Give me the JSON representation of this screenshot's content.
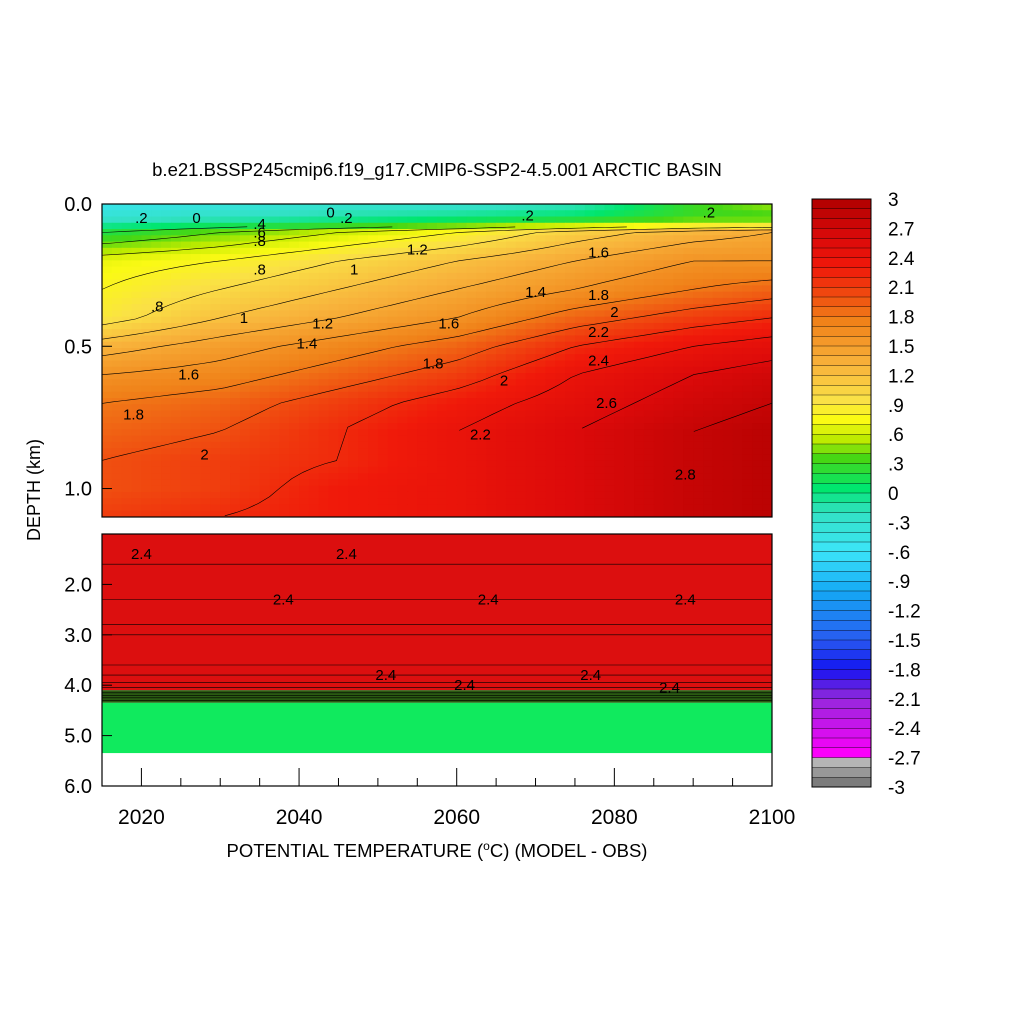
{
  "chart_data": {
    "type": "heatmap",
    "title": "b.e21.BSSP245cmip6.f19_g17.CMIP6-SSP2-4.5.001 ARCTIC BASIN",
    "xlabel": "POTENTIAL TEMPERATURE (",
    "xlabel_sup": "o",
    "xlabel_tail": "C) (MODEL - OBS)",
    "ylabel": "DEPTH (km)",
    "xlim": [
      2015,
      2100
    ],
    "x_ticks": [
      "2020",
      "2040",
      "2060",
      "2080",
      "2100"
    ],
    "x_tick_values": [
      2020,
      2040,
      2060,
      2080,
      2100
    ],
    "panels": [
      {
        "name": "upper",
        "ylim": [
          0.0,
          1.1
        ],
        "y_ticks": [
          "0.0",
          "0.5",
          "1.0"
        ],
        "y_tick_values": [
          0.0,
          0.5,
          1.0
        ],
        "field": {
          "x": [
            2015,
            2030,
            2045,
            2060,
            2075,
            2090,
            2100
          ],
          "y": [
            0.0,
            0.05,
            0.1,
            0.2,
            0.3,
            0.4,
            0.5,
            0.6,
            0.7,
            0.8,
            0.9,
            1.0,
            1.1
          ],
          "z": [
            [
              -0.5,
              -0.4,
              -0.3,
              -0.3,
              -0.2,
              0.3,
              0.5
            ],
            [
              -0.3,
              -0.2,
              -0.1,
              0.0,
              0.1,
              0.3,
              0.3
            ],
            [
              0.2,
              0.4,
              0.6,
              0.8,
              1.1,
              1.3,
              1.4
            ],
            [
              0.7,
              0.8,
              1.0,
              1.2,
              1.4,
              1.6,
              1.6
            ],
            [
              0.8,
              1.0,
              1.2,
              1.4,
              1.6,
              1.8,
              1.9
            ],
            [
              0.9,
              1.2,
              1.4,
              1.6,
              1.9,
              2.1,
              2.2
            ],
            [
              1.3,
              1.5,
              1.7,
              1.9,
              2.2,
              2.4,
              2.5
            ],
            [
              1.6,
              1.7,
              1.9,
              2.1,
              2.4,
              2.6,
              2.7
            ],
            [
              1.8,
              1.9,
              2.1,
              2.3,
              2.5,
              2.7,
              2.8
            ],
            [
              1.9,
              2.0,
              2.2,
              2.4,
              2.6,
              2.8,
              2.9
            ],
            [
              2.0,
              2.1,
              2.2,
              2.4,
              2.6,
              2.8,
              2.9
            ],
            [
              2.0,
              2.1,
              2.3,
              2.4,
              2.6,
              2.8,
              2.9
            ],
            [
              2.1,
              2.2,
              2.3,
              2.4,
              2.6,
              2.8,
              2.9
            ]
          ]
        },
        "contour_labels": [
          {
            "text": ".2",
            "x": 2020,
            "y": 0.05
          },
          {
            "text": "0",
            "x": 2027,
            "y": 0.05
          },
          {
            "text": "0",
            "x": 2044,
            "y": 0.03
          },
          {
            "text": ".2",
            "x": 2046,
            "y": 0.05
          },
          {
            "text": ".2",
            "x": 2069,
            "y": 0.04
          },
          {
            "text": ".2",
            "x": 2092,
            "y": 0.03
          },
          {
            "text": ".4",
            "x": 2035,
            "y": 0.07
          },
          {
            "text": ".6",
            "x": 2035,
            "y": 0.1
          },
          {
            "text": ".8",
            "x": 2035,
            "y": 0.13
          },
          {
            "text": ".8",
            "x": 2035,
            "y": 0.23
          },
          {
            "text": ".8",
            "x": 2022,
            "y": 0.36
          },
          {
            "text": "1",
            "x": 2047,
            "y": 0.23
          },
          {
            "text": "1",
            "x": 2033,
            "y": 0.4
          },
          {
            "text": "1.2",
            "x": 2043,
            "y": 0.42
          },
          {
            "text": "1.2",
            "x": 2055,
            "y": 0.16
          },
          {
            "text": "1.4",
            "x": 2041,
            "y": 0.49
          },
          {
            "text": "1.4",
            "x": 2070,
            "y": 0.31
          },
          {
            "text": "1.6",
            "x": 2026,
            "y": 0.6
          },
          {
            "text": "1.6",
            "x": 2059,
            "y": 0.42
          },
          {
            "text": "1.6",
            "x": 2078,
            "y": 0.17
          },
          {
            "text": "1.8",
            "x": 2019,
            "y": 0.74
          },
          {
            "text": "1.8",
            "x": 2057,
            "y": 0.56
          },
          {
            "text": "1.8",
            "x": 2078,
            "y": 0.32
          },
          {
            "text": "2",
            "x": 2028,
            "y": 0.88
          },
          {
            "text": "2",
            "x": 2066,
            "y": 0.62
          },
          {
            "text": "2",
            "x": 2080,
            "y": 0.38
          },
          {
            "text": "2.2",
            "x": 2063,
            "y": 0.81
          },
          {
            "text": "2.2",
            "x": 2078,
            "y": 0.45
          },
          {
            "text": "2.4",
            "x": 2078,
            "y": 0.55
          },
          {
            "text": "2.6",
            "x": 2079,
            "y": 0.7
          },
          {
            "text": "2.8",
            "x": 2089,
            "y": 0.95
          }
        ]
      },
      {
        "name": "lower",
        "ylim": [
          1.0,
          6.0
        ],
        "y_ticks": [
          "2.0",
          "3.0",
          "4.0",
          "5.0",
          "6.0"
        ],
        "y_tick_values": [
          2.0,
          3.0,
          4.0,
          5.0,
          6.0
        ],
        "bands": [
          {
            "y0": 1.0,
            "y1": 4.1,
            "value": 2.4
          },
          {
            "y0": 4.1,
            "y1": 4.35,
            "value": 0.3
          },
          {
            "y0": 4.35,
            "y1": 5.35,
            "value": 0.1
          },
          {
            "y0": 5.35,
            "y1": 6.0,
            "value": null
          }
        ],
        "contour_levels_y": [
          1.6,
          2.3,
          2.8,
          3.0,
          3.6,
          3.8,
          3.95,
          4.05,
          4.15,
          4.2,
          4.25,
          4.3
        ],
        "contour_labels": [
          {
            "text": "2.4",
            "x": 2020,
            "y": 1.4
          },
          {
            "text": "2.4",
            "x": 2046,
            "y": 1.4
          },
          {
            "text": "2.4",
            "x": 2038,
            "y": 2.3
          },
          {
            "text": "2.4",
            "x": 2064,
            "y": 2.3
          },
          {
            "text": "2.4",
            "x": 2089,
            "y": 2.3
          },
          {
            "text": "2.4",
            "x": 2051,
            "y": 3.8
          },
          {
            "text": "2.4",
            "x": 2061,
            "y": 4.0
          },
          {
            "text": "2.4",
            "x": 2077,
            "y": 3.8
          },
          {
            "text": "2.4",
            "x": 2087,
            "y": 4.05
          }
        ]
      }
    ],
    "colorbar": {
      "labels": [
        "3",
        "2.7",
        "2.4",
        "2.1",
        "1.8",
        "1.5",
        "1.2",
        ".9",
        ".6",
        ".3",
        "0",
        "-.3",
        "-.6",
        "-.9",
        "-1.2",
        "-1.5",
        "-1.8",
        "-2.1",
        "-2.4",
        "-2.7",
        "-3"
      ],
      "label_values": [
        3,
        2.7,
        2.4,
        2.1,
        1.8,
        1.5,
        1.2,
        0.9,
        0.6,
        0.3,
        0,
        -0.3,
        -0.6,
        -0.9,
        -1.2,
        -1.5,
        -1.8,
        -2.1,
        -2.4,
        -2.7,
        -3
      ],
      "min": -3,
      "max": 3,
      "step": 0.1
    }
  }
}
